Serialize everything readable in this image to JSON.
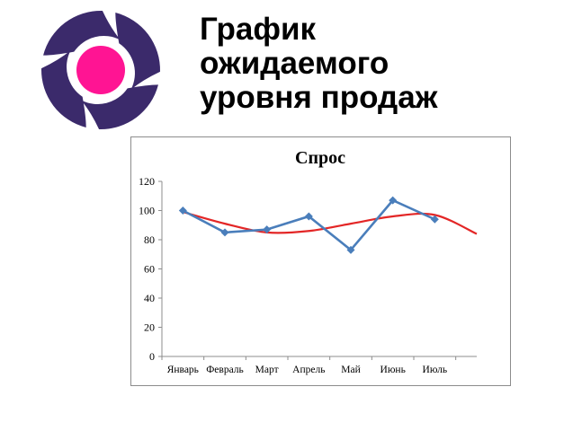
{
  "slide": {
    "title_lines": [
      "График",
      "ожидаемого",
      "уровня продаж"
    ]
  },
  "logo": {
    "icon": "spiral-logo-icon",
    "ring_color": "#3b2a6b",
    "center_color": "#ff1493"
  },
  "chart_data": {
    "type": "line",
    "title": "Спрос",
    "categories": [
      "Январь",
      "Февраль",
      "Март",
      "Апрель",
      "Май",
      "Июнь",
      "Июль"
    ],
    "series": [
      {
        "values": [
          100,
          85,
          87,
          96,
          73,
          107,
          94
        ],
        "color": "#4a7ebb",
        "marker": "diamond"
      }
    ],
    "trendline": {
      "type": "polynomial",
      "color": "#e32626",
      "values": [
        99,
        91,
        85,
        86,
        91,
        96,
        97,
        84
      ]
    },
    "ylim": [
      0,
      120
    ],
    "yticks": [
      0,
      20,
      40,
      60,
      80,
      100,
      120
    ],
    "grid": false,
    "legend": "none"
  }
}
